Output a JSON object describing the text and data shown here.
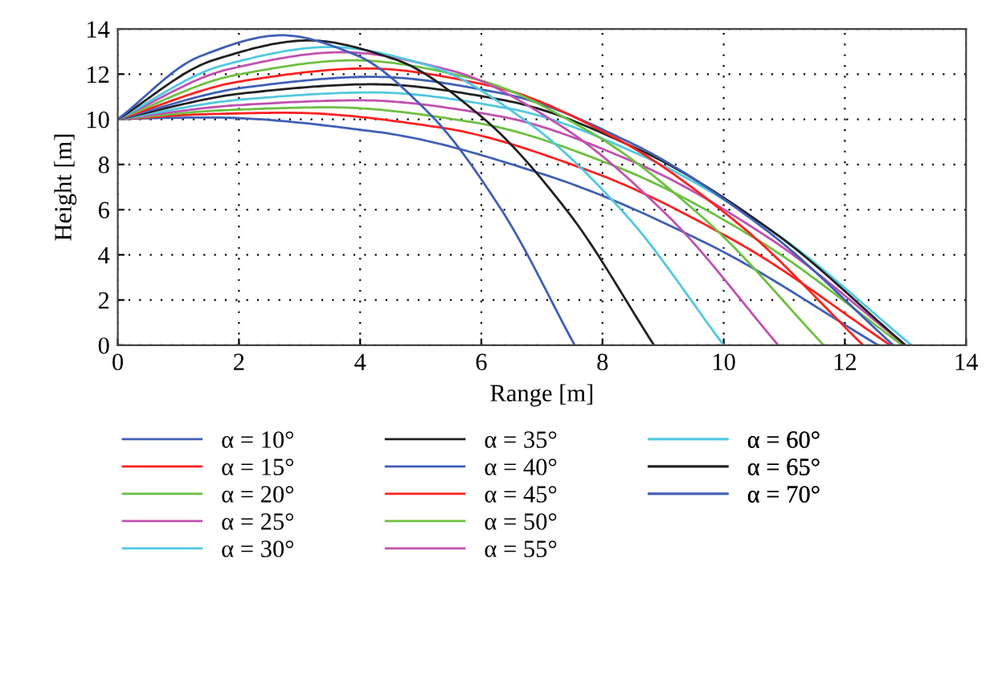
{
  "chart_data": {
    "type": "line",
    "xlabel": "Range [m]",
    "ylabel": "Height [m]",
    "xlim": [
      0,
      14
    ],
    "ylim": [
      0,
      14
    ],
    "xticks": [
      0,
      2,
      4,
      6,
      8,
      10,
      12,
      14
    ],
    "yticks": [
      0,
      2,
      4,
      6,
      8,
      10,
      12,
      14
    ],
    "grid": true,
    "legend": "bottom",
    "marker": "none",
    "line_style": "solid",
    "series": [
      {
        "name": "α = 10°",
        "color": "#3f5fb5",
        "x": [
          0,
          0.75,
          1.5,
          4.26,
          7.03,
          9.79,
          12.55
        ],
        "values": [
          10,
          10.06,
          10.08,
          9.45,
          7.56,
          4.41,
          0
        ]
      },
      {
        "name": "α = 15°",
        "color": "#ff2020",
        "x": [
          0,
          1.4,
          2.8,
          5.29,
          7.78,
          10.26,
          12.75
        ],
        "values": [
          10,
          10.22,
          10.29,
          9.65,
          7.72,
          4.5,
          0
        ]
      },
      {
        "name": "α = 20°",
        "color": "#6cc040",
        "x": [
          0,
          1.75,
          3.5,
          5.86,
          8.23,
          10.59,
          12.95
        ],
        "values": [
          10,
          10.4,
          10.53,
          9.87,
          7.9,
          4.61,
          0
        ]
      },
      {
        "name": "α = 25°",
        "color": "#c050b0",
        "x": [
          0,
          2.0,
          4.0,
          6.25,
          8.5,
          10.75,
          13.0
        ],
        "values": [
          10,
          10.63,
          10.84,
          10.16,
          8.13,
          4.74,
          0
        ]
      },
      {
        "name": "α = 30°",
        "color": "#50c8e0",
        "x": [
          0,
          2.1,
          4.2,
          6.43,
          8.65,
          10.88,
          13.1
        ],
        "values": [
          10,
          10.89,
          11.19,
          10.49,
          8.39,
          4.9,
          0
        ]
      },
      {
        "name": "α = 35°",
        "color": "#202020",
        "x": [
          0,
          2.1,
          4.2,
          6.4,
          8.6,
          10.8,
          13.0
        ],
        "values": [
          10,
          11.16,
          11.55,
          10.83,
          8.66,
          5.05,
          0
        ]
      },
      {
        "name": "α = 40°",
        "color": "#3f5fb5",
        "x": [
          0,
          2.1,
          4.2,
          6.35,
          8.5,
          10.65,
          12.8
        ],
        "values": [
          10,
          11.41,
          11.88,
          11.14,
          8.91,
          5.2,
          0
        ]
      },
      {
        "name": "α = 45°",
        "color": "#ff2020",
        "x": [
          0,
          2.05,
          4.1,
          6.15,
          8.2,
          10.25,
          12.3
        ],
        "values": [
          10,
          11.69,
          12.25,
          11.48,
          9.19,
          5.36,
          0
        ]
      },
      {
        "name": "α = 50°",
        "color": "#6cc040",
        "x": [
          0,
          1.95,
          3.9,
          5.84,
          7.78,
          9.71,
          11.65
        ],
        "values": [
          10,
          11.96,
          12.61,
          11.82,
          9.46,
          5.52,
          0
        ]
      },
      {
        "name": "α = 55°",
        "color": "#c050b0",
        "x": [
          0,
          1.85,
          3.7,
          5.5,
          7.3,
          9.1,
          10.9
        ],
        "values": [
          10,
          12.23,
          12.97,
          12.16,
          9.73,
          5.67,
          0
        ]
      },
      {
        "name": "α = 60°",
        "color": "#50c8e0",
        "x": [
          0,
          1.75,
          3.5,
          5.13,
          6.75,
          8.38,
          10.0
        ],
        "values": [
          10,
          12.4,
          13.2,
          12.38,
          9.9,
          5.78,
          0
        ]
      },
      {
        "name": "α = 65°",
        "color": "#202020",
        "x": [
          0,
          1.58,
          3.15,
          4.58,
          6.0,
          7.43,
          8.85
        ],
        "values": [
          10,
          12.62,
          13.49,
          12.65,
          10.12,
          5.9,
          0
        ]
      },
      {
        "name": "α = 70°",
        "color": "#3f5fb5",
        "x": [
          0,
          1.36,
          2.71,
          3.92,
          5.13,
          6.33,
          7.54
        ],
        "values": [
          10,
          12.79,
          13.72,
          12.86,
          10.29,
          6.0,
          0
        ]
      }
    ]
  }
}
